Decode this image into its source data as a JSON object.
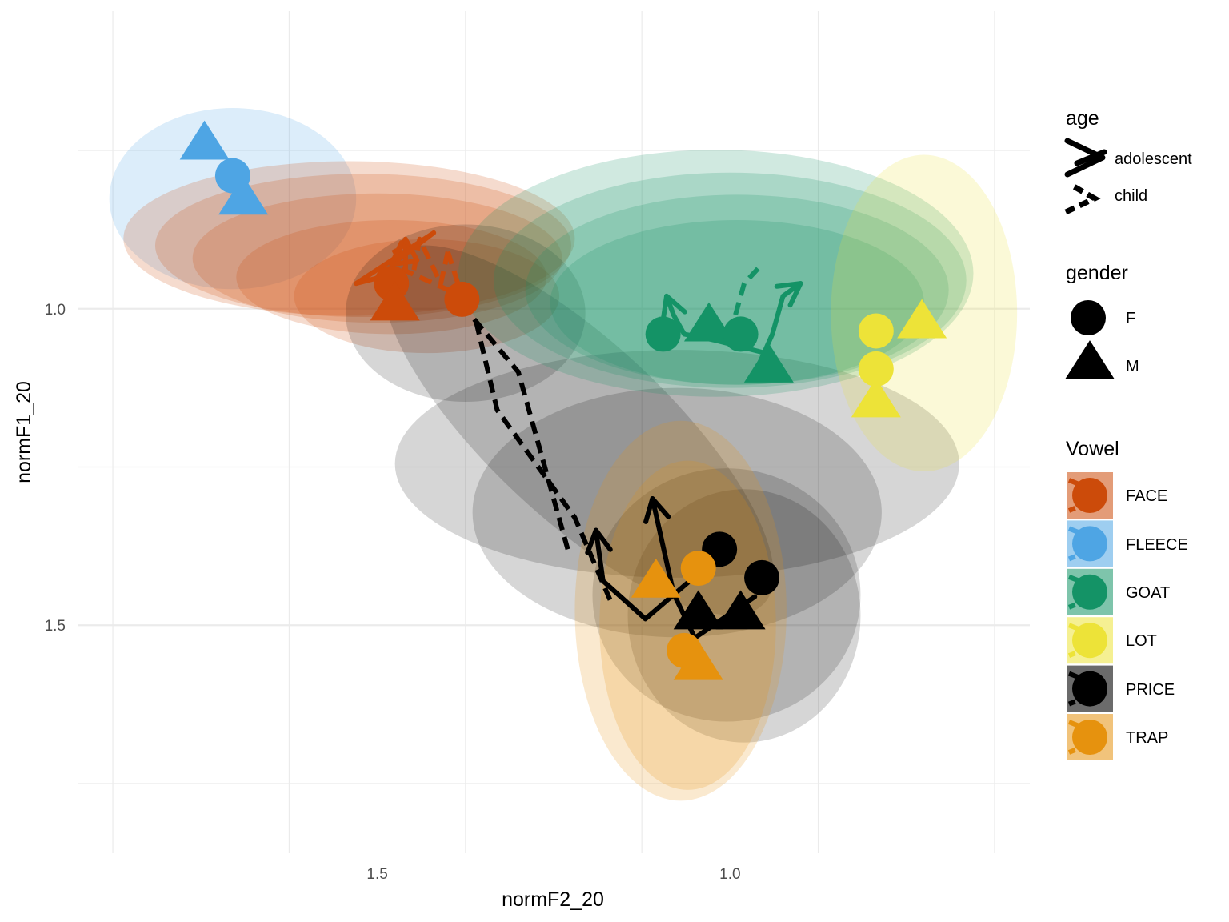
{
  "chart_data": {
    "type": "scatter",
    "xlabel": "normF2_20",
    "ylabel": "normF1_20",
    "x_reversed": true,
    "y_reversed": true,
    "xlim": [
      1.925,
      0.575
    ],
    "ylim": [
      0.53,
      1.86
    ],
    "x_ticks": [
      1.5,
      1.0
    ],
    "x_tick_labels": [
      "1.5",
      "1.0"
    ],
    "y_ticks": [
      1.0,
      1.5
    ],
    "y_tick_labels": [
      "1.0",
      "1.5"
    ],
    "grid": true,
    "legend_position": "right",
    "vowel_colors": {
      "FACE": "#cc4b0a",
      "FLEECE": "#4ea5e4",
      "GOAT": "#149366",
      "LOT": "#ede338",
      "PRICE": "#000000",
      "TRAP": "#e6920e"
    },
    "legends": {
      "age": {
        "title": "age",
        "entries": [
          "adolescent",
          "child"
        ]
      },
      "gender": {
        "title": "gender",
        "entries": [
          "F",
          "M"
        ]
      },
      "Vowel": {
        "title": "Vowel",
        "entries": [
          "FACE",
          "FLEECE",
          "GOAT",
          "LOT",
          "PRICE",
          "TRAP"
        ]
      }
    },
    "ellipses": [
      {
        "vowel": "FLEECE",
        "cx": 1.705,
        "cy": 0.826,
        "rx": 0.175,
        "ry": 0.143
      },
      {
        "vowel": "FACE",
        "cx": 1.54,
        "cy": 0.889,
        "rx": 0.32,
        "ry": 0.122
      },
      {
        "vowel": "FACE",
        "cx": 1.52,
        "cy": 0.9,
        "rx": 0.295,
        "ry": 0.113
      },
      {
        "vowel": "FACE",
        "cx": 1.5,
        "cy": 0.92,
        "rx": 0.262,
        "ry": 0.102
      },
      {
        "vowel": "FACE",
        "cx": 1.48,
        "cy": 0.95,
        "rx": 0.22,
        "ry": 0.09
      },
      {
        "vowel": "FACE",
        "cx": 1.43,
        "cy": 0.98,
        "rx": 0.188,
        "ry": 0.09
      },
      {
        "vowel": "PRICE",
        "cx": 1.375,
        "cy": 1.007,
        "rx": 0.17,
        "ry": 0.14
      },
      {
        "vowel": "PRICE",
        "cx": 1.215,
        "cy": 1.192,
        "rx": 0.36,
        "ry": 0.14,
        "rot": 43
      },
      {
        "vowel": "PRICE",
        "cx": 1.075,
        "cy": 1.245,
        "rx": 0.4,
        "ry": 0.18
      },
      {
        "vowel": "PRICE",
        "cx": 1.075,
        "cy": 1.322,
        "rx": 0.29,
        "ry": 0.197
      },
      {
        "vowel": "PRICE",
        "cx": 1.005,
        "cy": 1.452,
        "rx": 0.19,
        "ry": 0.2
      },
      {
        "vowel": "PRICE",
        "cx": 0.98,
        "cy": 1.485,
        "rx": 0.165,
        "ry": 0.2
      },
      {
        "vowel": "TRAP",
        "cx": 1.07,
        "cy": 1.477,
        "rx": 0.15,
        "ry": 0.3
      },
      {
        "vowel": "TRAP",
        "cx": 1.06,
        "cy": 1.5,
        "rx": 0.125,
        "ry": 0.26
      },
      {
        "vowel": "GOAT",
        "cx": 1.02,
        "cy": 0.944,
        "rx": 0.365,
        "ry": 0.195
      },
      {
        "vowel": "GOAT",
        "cx": 1.0,
        "cy": 0.955,
        "rx": 0.335,
        "ry": 0.17
      },
      {
        "vowel": "GOAT",
        "cx": 0.99,
        "cy": 0.97,
        "rx": 0.3,
        "ry": 0.15
      },
      {
        "vowel": "GOAT",
        "cx": 0.99,
        "cy": 0.99,
        "rx": 0.265,
        "ry": 0.13
      },
      {
        "vowel": "LOT",
        "cx": 0.725,
        "cy": 1.007,
        "rx": 0.132,
        "ry": 0.25
      }
    ],
    "trajectories": [
      {
        "vowel": "FACE",
        "age": "child",
        "x": [
          1.4,
          1.38,
          1.46,
          1.48
        ],
        "y": [
          0.91,
          0.98,
          0.94,
          0.9
        ]
      },
      {
        "vowel": "FACE",
        "age": "child",
        "x": [
          1.4,
          1.41,
          1.44,
          1.45
        ],
        "y": [
          0.91,
          0.96,
          0.89,
          0.95
        ]
      },
      {
        "vowel": "FACE",
        "age": "adolescent",
        "x": [
          1.53,
          1.46,
          1.46
        ],
        "y": [
          0.96,
          0.94,
          0.89
        ]
      },
      {
        "vowel": "FACE",
        "age": "adolescent",
        "x": [
          1.53,
          1.42,
          1.48
        ],
        "y": [
          0.96,
          0.88,
          0.93
        ]
      },
      {
        "vowel": "PRICE",
        "age": "child",
        "x": [
          1.23,
          1.275,
          1.3,
          1.375
        ],
        "y": [
          1.38,
          1.2,
          1.1,
          1.0
        ]
      },
      {
        "vowel": "PRICE",
        "age": "child",
        "x": [
          1.17,
          1.22,
          1.33,
          1.36
        ],
        "y": [
          1.46,
          1.33,
          1.16,
          1.02
        ]
      },
      {
        "vowel": "PRICE",
        "age": "adolescent",
        "x": [
          0.965,
          1.05,
          1.08,
          1.11
        ],
        "y": [
          1.455,
          1.52,
          1.45,
          1.3
        ]
      },
      {
        "vowel": "PRICE",
        "age": "adolescent",
        "x": [
          1.01,
          1.12,
          1.18,
          1.19
        ],
        "y": [
          1.385,
          1.49,
          1.43,
          1.35
        ]
      },
      {
        "vowel": "GOAT",
        "age": "adolescent",
        "x": [
          0.95,
          1.02,
          1.065,
          1.08,
          1.09
        ],
        "y": [
          1.07,
          1.05,
          1.04,
          1.01,
          0.98
        ]
      },
      {
        "vowel": "GOAT",
        "age": "adolescent",
        "x": [
          0.96,
          0.94,
          0.925,
          0.9
        ],
        "y": [
          1.09,
          1.04,
          0.98,
          0.96
        ]
      },
      {
        "vowel": "GOAT",
        "age": "child",
        "x": [
          1.0,
          0.98,
          0.955
        ],
        "y": [
          1.04,
          0.96,
          0.93
        ]
      }
    ],
    "points": [
      {
        "vowel": "FLEECE",
        "gender": "M",
        "x": 1.745,
        "y": 0.738
      },
      {
        "vowel": "FLEECE",
        "gender": "F",
        "x": 1.705,
        "y": 0.79
      },
      {
        "vowel": "FLEECE",
        "gender": "M",
        "x": 1.69,
        "y": 0.825
      },
      {
        "vowel": "FACE",
        "gender": "F",
        "x": 1.48,
        "y": 0.96
      },
      {
        "vowel": "FACE",
        "gender": "M",
        "x": 1.475,
        "y": 0.992
      },
      {
        "vowel": "FACE",
        "gender": "F",
        "x": 1.38,
        "y": 0.985
      },
      {
        "vowel": "GOAT",
        "gender": "F",
        "x": 1.095,
        "y": 1.04
      },
      {
        "vowel": "GOAT",
        "gender": "M",
        "x": 1.03,
        "y": 1.025
      },
      {
        "vowel": "GOAT",
        "gender": "F",
        "x": 0.985,
        "y": 1.04
      },
      {
        "vowel": "GOAT",
        "gender": "M",
        "x": 0.945,
        "y": 1.09
      },
      {
        "vowel": "LOT",
        "gender": "F",
        "x": 0.793,
        "y": 1.035
      },
      {
        "vowel": "LOT",
        "gender": "M",
        "x": 0.728,
        "y": 1.02
      },
      {
        "vowel": "LOT",
        "gender": "F",
        "x": 0.793,
        "y": 1.095
      },
      {
        "vowel": "LOT",
        "gender": "M",
        "x": 0.793,
        "y": 1.145
      },
      {
        "vowel": "PRICE",
        "gender": "F",
        "x": 1.015,
        "y": 1.38
      },
      {
        "vowel": "PRICE",
        "gender": "F",
        "x": 0.955,
        "y": 1.425
      },
      {
        "vowel": "PRICE",
        "gender": "M",
        "x": 1.045,
        "y": 1.48
      },
      {
        "vowel": "PRICE",
        "gender": "M",
        "x": 0.985,
        "y": 1.48
      },
      {
        "vowel": "TRAP",
        "gender": "F",
        "x": 1.045,
        "y": 1.41
      },
      {
        "vowel": "TRAP",
        "gender": "M",
        "x": 1.105,
        "y": 1.43
      },
      {
        "vowel": "TRAP",
        "gender": "F",
        "x": 1.065,
        "y": 1.54
      },
      {
        "vowel": "TRAP",
        "gender": "M",
        "x": 1.045,
        "y": 1.56
      }
    ]
  }
}
